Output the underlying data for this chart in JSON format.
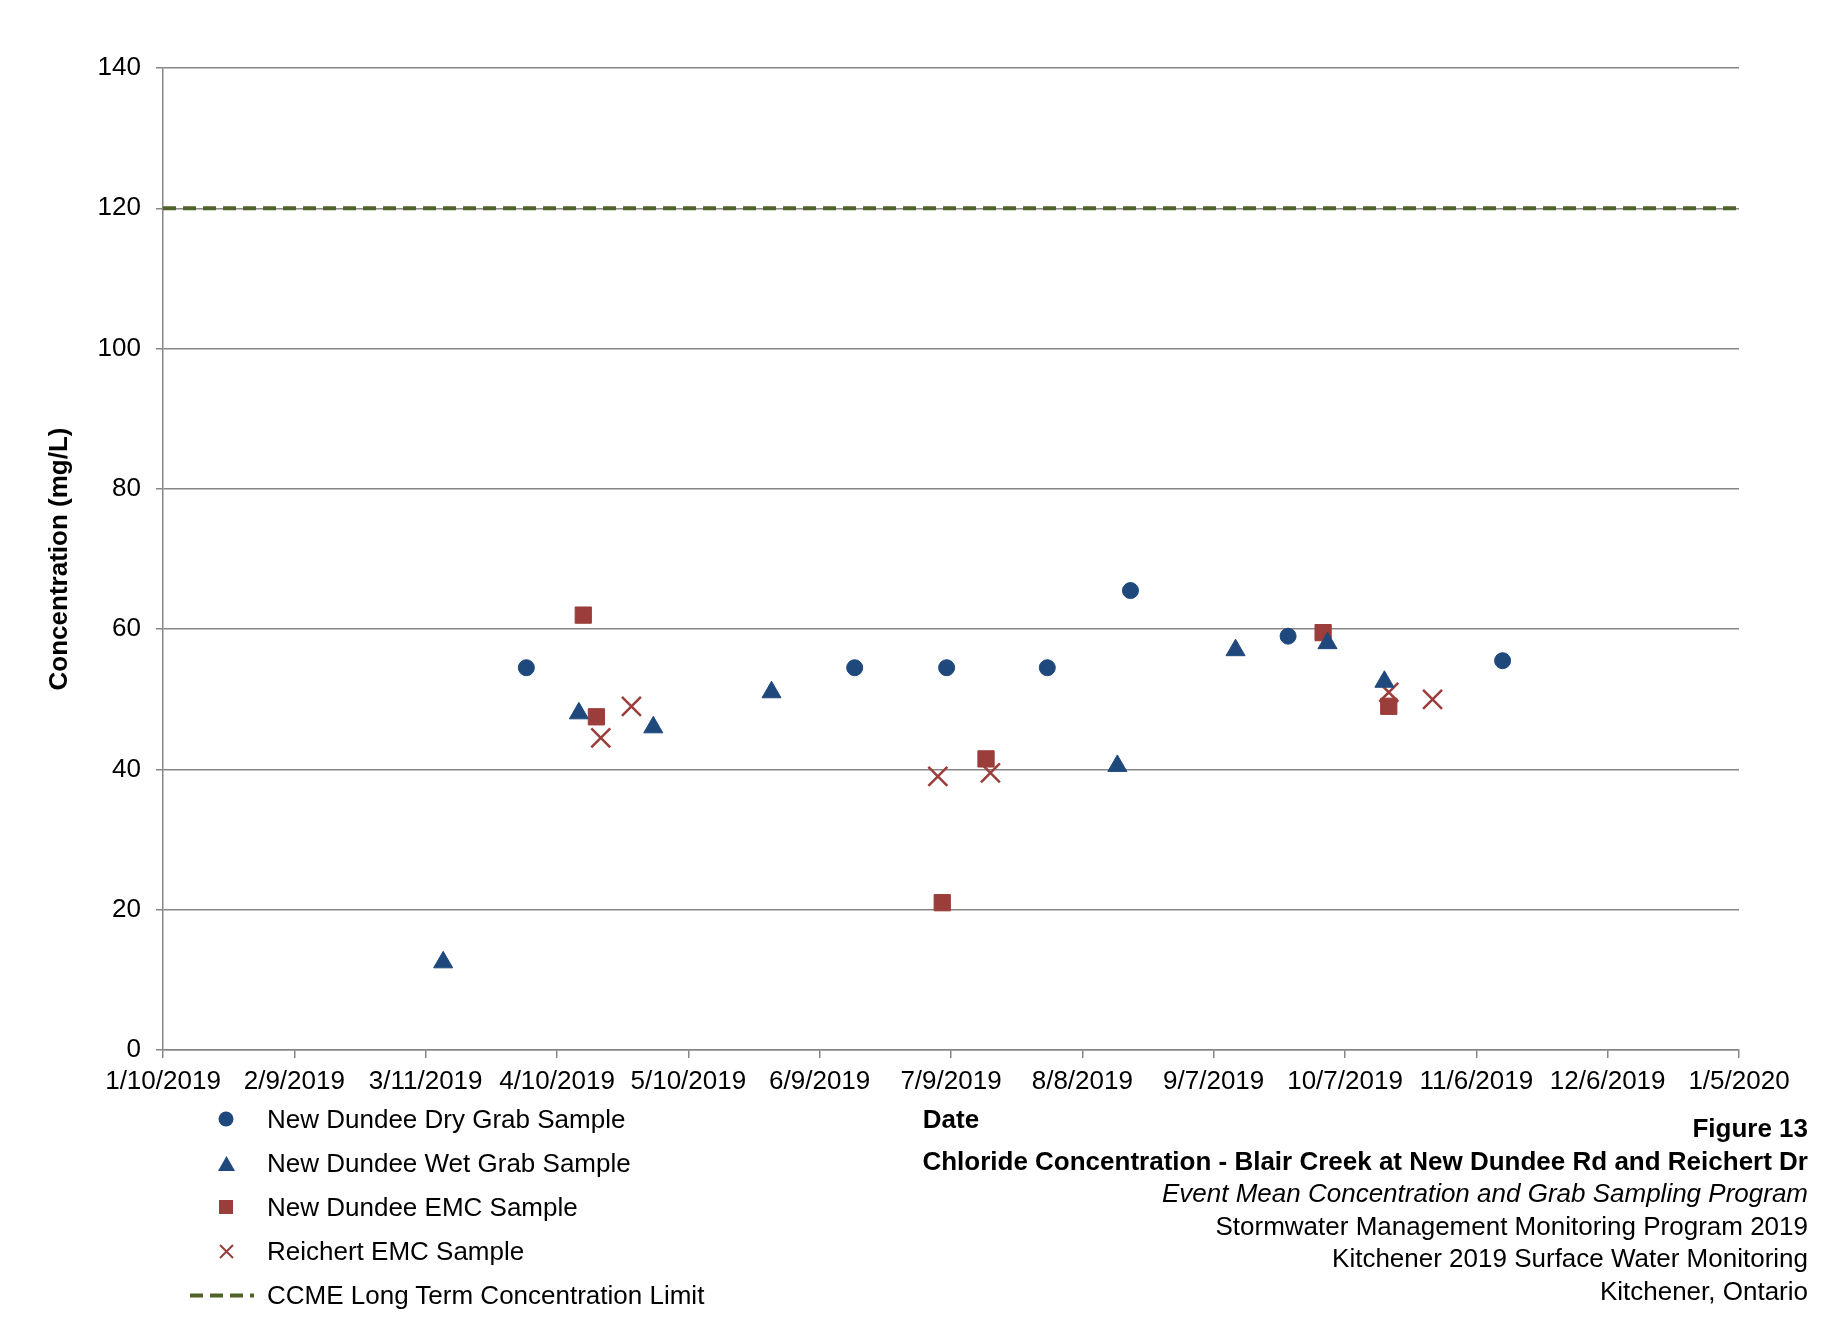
{
  "chart_data": {
    "type": "scatter",
    "title": "Chloride Concentration - Blair Creek at New Dundee Rd and Reichert Dr",
    "subtitle": "Event Mean Concentration and Grab Sampling Program",
    "xlabel": "Date",
    "ylabel": "Concentration (mg/L)",
    "annotations": [
      "Figure 13",
      "Stormwater Management Monitoring Program 2019",
      "Kitchener 2019 Surface Water Monitoring",
      "Kitchener, Ontario"
    ],
    "xlim": [
      "2019-01-10",
      "2020-01-05"
    ],
    "xticks": [
      {
        "value": "2019-01-10",
        "label": "1/10/2019"
      },
      {
        "value": "2019-02-09",
        "label": "2/9/2019"
      },
      {
        "value": "2019-03-11",
        "label": "3/11/2019"
      },
      {
        "value": "2019-04-10",
        "label": "4/10/2019"
      },
      {
        "value": "2019-05-10",
        "label": "5/10/2019"
      },
      {
        "value": "2019-06-09",
        "label": "6/9/2019"
      },
      {
        "value": "2019-07-09",
        "label": "7/9/2019"
      },
      {
        "value": "2019-08-08",
        "label": "8/8/2019"
      },
      {
        "value": "2019-09-07",
        "label": "9/7/2019"
      },
      {
        "value": "2019-10-07",
        "label": "10/7/2019"
      },
      {
        "value": "2019-11-06",
        "label": "11/6/2019"
      },
      {
        "value": "2019-12-06",
        "label": "12/6/2019"
      },
      {
        "value": "2020-01-05",
        "label": "1/5/2020"
      }
    ],
    "ylim": [
      0,
      140
    ],
    "yticks": [
      0,
      20,
      40,
      60,
      80,
      100,
      120,
      140
    ],
    "grid": "y",
    "legend": "bottom left",
    "series": [
      {
        "name": "New Dundee Dry Grab Sample",
        "color": "#1f497d",
        "marker": "circle",
        "x": [
          "2019-04-03",
          "2019-06-17",
          "2019-07-08",
          "2019-07-31",
          "2019-08-19",
          "2019-09-24",
          "2019-11-12"
        ],
        "values": [
          54.5,
          54.5,
          54.5,
          54.5,
          65.5,
          59,
          55.5
        ]
      },
      {
        "name": "New Dundee Wet Grab Sample",
        "color": "#1f497d",
        "marker": "triangle",
        "x": [
          "2019-03-15",
          "2019-04-15",
          "2019-05-02",
          "2019-05-29",
          "2019-08-16",
          "2019-09-12",
          "2019-10-03",
          "2019-10-16"
        ],
        "values": [
          12.5,
          48,
          46,
          51,
          40.5,
          57,
          58,
          52.5
        ]
      },
      {
        "name": "New Dundee EMC Sample",
        "color": "#9b3d3a",
        "marker": "square",
        "x": [
          "2019-04-16",
          "2019-04-19",
          "2019-07-07",
          "2019-07-17",
          "2019-10-02",
          "2019-10-17"
        ],
        "values": [
          62,
          47.5,
          21,
          41.5,
          59.5,
          49
        ]
      },
      {
        "name": "Reichert EMC Sample",
        "color": "#9b3d3a",
        "marker": "cross",
        "x": [
          "2019-04-20",
          "2019-04-27",
          "2019-07-06",
          "2019-07-18",
          "2019-10-17",
          "2019-10-27"
        ],
        "values": [
          44.5,
          49,
          39,
          39.5,
          51,
          50
        ]
      }
    ],
    "ref_lines": [
      {
        "axis": "y",
        "value": 120,
        "label": "CCME Long Term Concentration Limit",
        "color": "#4f6228",
        "line_style": "dashed"
      }
    ]
  }
}
